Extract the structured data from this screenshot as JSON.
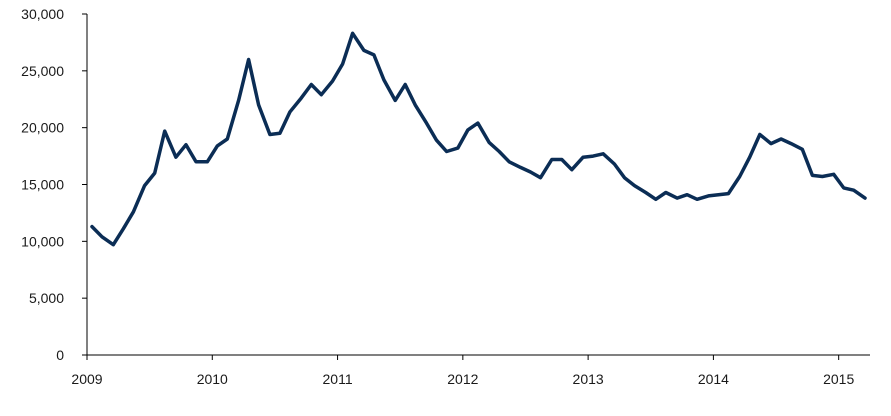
{
  "chart_data": {
    "type": "line",
    "title": "",
    "xlabel": "",
    "ylabel": "",
    "ylim": [
      0,
      30000
    ],
    "xlim": [
      2009.0,
      2015.25
    ],
    "yticks": [
      0,
      5000,
      10000,
      15000,
      20000,
      25000,
      30000
    ],
    "ytick_labels": [
      "0",
      "5,000",
      "10,000",
      "15,000",
      "20,000",
      "25,000",
      "30,000"
    ],
    "xticks": [
      2009,
      2010,
      2011,
      2012,
      2013,
      2014,
      2015
    ],
    "xtick_labels": [
      "2009",
      "2010",
      "2011",
      "2012",
      "2013",
      "2014",
      "2015"
    ],
    "grid": false,
    "legend": "none",
    "series": [
      {
        "color": "#0b2d55",
        "x": [
          2009.04,
          2009.12,
          2009.21,
          2009.29,
          2009.37,
          2009.46,
          2009.54,
          2009.62,
          2009.71,
          2009.79,
          2009.87,
          2009.96,
          2010.04,
          2010.12,
          2010.21,
          2010.29,
          2010.37,
          2010.46,
          2010.54,
          2010.62,
          2010.71,
          2010.79,
          2010.87,
          2010.96,
          2011.04,
          2011.12,
          2011.21,
          2011.29,
          2011.37,
          2011.46,
          2011.54,
          2011.62,
          2011.71,
          2011.79,
          2011.87,
          2011.96,
          2012.04,
          2012.12,
          2012.21,
          2012.29,
          2012.37,
          2012.46,
          2012.54,
          2012.62,
          2012.71,
          2012.79,
          2012.87,
          2012.96,
          2013.04,
          2013.12,
          2013.21,
          2013.29,
          2013.37,
          2013.46,
          2013.54,
          2013.62,
          2013.71,
          2013.79,
          2013.87,
          2013.96,
          2014.04,
          2014.12,
          2014.21,
          2014.29,
          2014.37,
          2014.46,
          2014.54,
          2014.62,
          2014.71,
          2014.79,
          2014.87,
          2014.96,
          2015.04,
          2015.12,
          2015.21
        ],
        "values": [
          11300,
          10400,
          9700,
          11100,
          12600,
          14900,
          16000,
          19700,
          17400,
          18500,
          17000,
          17000,
          18400,
          19000,
          22400,
          26000,
          22000,
          19400,
          19500,
          21400,
          22600,
          23800,
          22900,
          24100,
          25600,
          28300,
          26800,
          26400,
          24200,
          22400,
          23800,
          22000,
          20400,
          18900,
          17900,
          18200,
          19800,
          20400,
          18700,
          17900,
          17000,
          16500,
          16100,
          15600,
          17200,
          17200,
          16300,
          17400,
          17500,
          17700,
          16800,
          15600,
          14900,
          14300,
          13700,
          14300,
          13800,
          14100,
          13700,
          14000,
          14100,
          14200,
          15700,
          17400,
          19400,
          18600,
          19000,
          18600,
          18100,
          15800,
          15700,
          15900,
          14700,
          14500,
          13800
        ]
      }
    ]
  }
}
